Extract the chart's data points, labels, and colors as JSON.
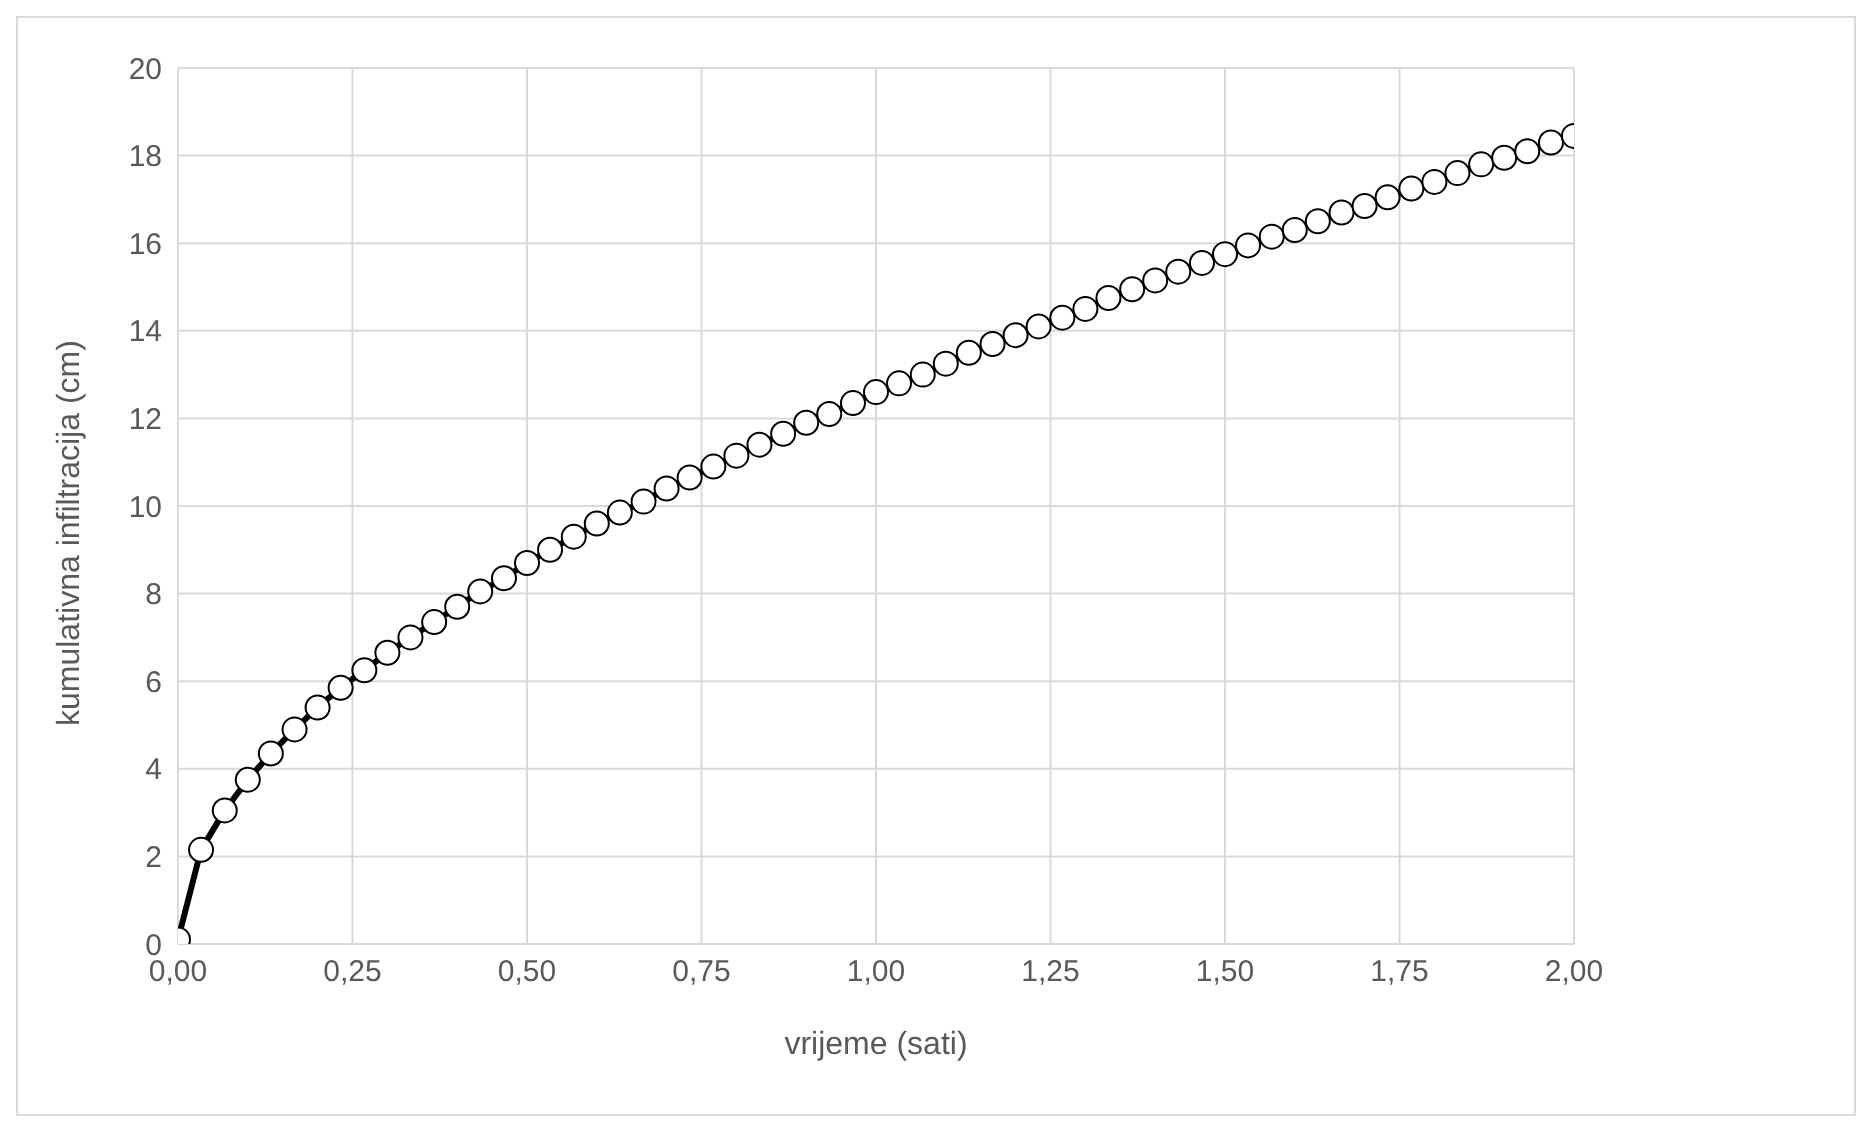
{
  "chart_data": {
    "type": "line",
    "xlabel": "vrijeme (sati)",
    "ylabel": "kumulativna infiltracija (cm)",
    "x": [
      0,
      0.033,
      0.067,
      0.1,
      0.133,
      0.167,
      0.2,
      0.233,
      0.267,
      0.3,
      0.333,
      0.367,
      0.4,
      0.433,
      0.467,
      0.5,
      0.533,
      0.567,
      0.6,
      0.633,
      0.667,
      0.7,
      0.733,
      0.767,
      0.8,
      0.833,
      0.867,
      0.9,
      0.933,
      0.967,
      1,
      1.033,
      1.067,
      1.1,
      1.133,
      1.167,
      1.2,
      1.233,
      1.267,
      1.3,
      1.333,
      1.367,
      1.4,
      1.433,
      1.467,
      1.5,
      1.533,
      1.567,
      1.6,
      1.633,
      1.667,
      1.7,
      1.733,
      1.767,
      1.8,
      1.833,
      1.867,
      1.9,
      1.933,
      1.967,
      2
    ],
    "series": [
      {
        "color": "#000000",
        "values": [
          0.1,
          2.15,
          3.05,
          3.75,
          4.35,
          4.9,
          5.4,
          5.85,
          6.25,
          6.65,
          7.0,
          7.35,
          7.7,
          8.05,
          8.35,
          8.7,
          9.0,
          9.3,
          9.6,
          9.85,
          10.1,
          10.4,
          10.65,
          10.9,
          11.15,
          11.4,
          11.65,
          11.9,
          12.1,
          12.35,
          12.6,
          12.8,
          13.0,
          13.25,
          13.5,
          13.7,
          13.9,
          14.1,
          14.3,
          14.5,
          14.75,
          14.95,
          15.15,
          15.35,
          15.55,
          15.75,
          15.95,
          16.15,
          16.3,
          16.5,
          16.7,
          16.85,
          17.05,
          17.25,
          17.4,
          17.6,
          17.8,
          17.95,
          18.1,
          18.3,
          18.45
        ]
      }
    ],
    "xlim": [
      0,
      2
    ],
    "xticks": [
      {
        "value": 0,
        "label": "0,00"
      },
      {
        "value": 0.25,
        "label": "0,25"
      },
      {
        "value": 0.5,
        "label": "0,50"
      },
      {
        "value": 0.75,
        "label": "0,75"
      },
      {
        "value": 1,
        "label": "1,00"
      },
      {
        "value": 1.25,
        "label": "1,25"
      },
      {
        "value": 1.5,
        "label": "1,50"
      },
      {
        "value": 1.75,
        "label": "1,75"
      },
      {
        "value": 2,
        "label": "2,00"
      }
    ],
    "ylim": [
      0,
      20
    ],
    "yticks": [
      0,
      2,
      4,
      6,
      8,
      10,
      12,
      14,
      16,
      18,
      20
    ],
    "grid": true,
    "marker": "circle",
    "line_style": "solid"
  }
}
